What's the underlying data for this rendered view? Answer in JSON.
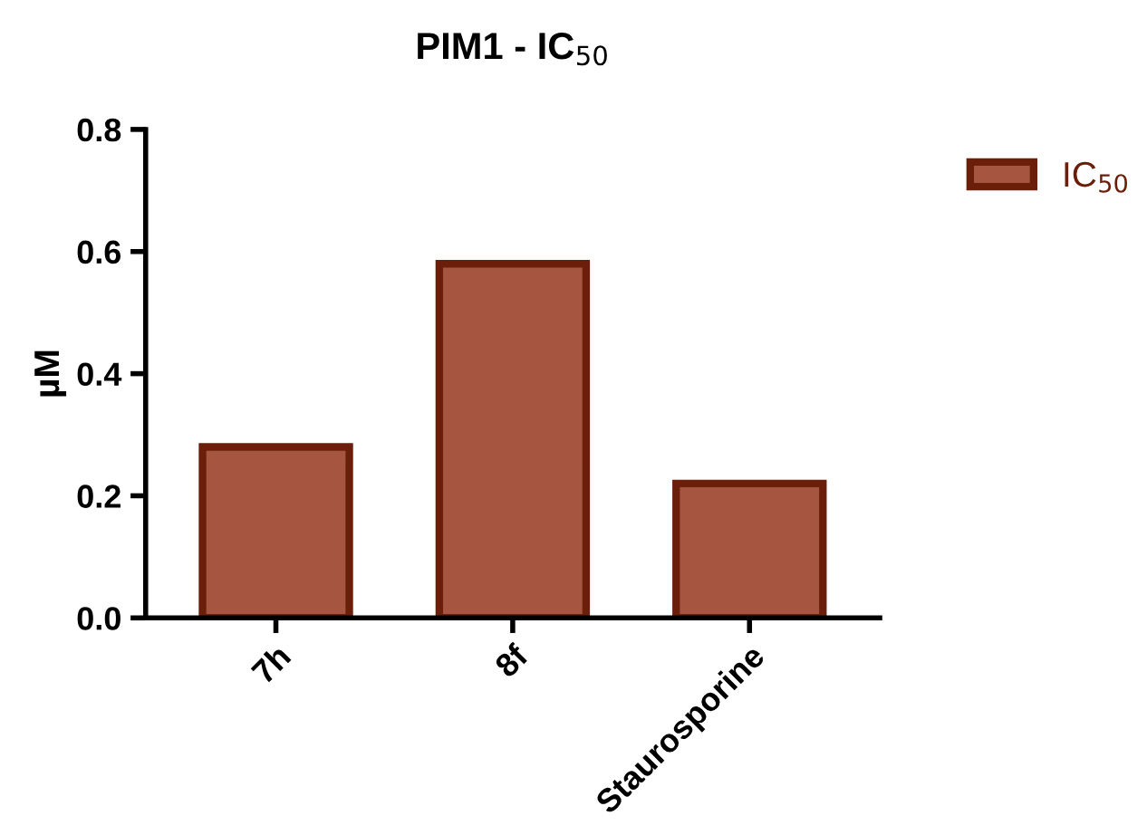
{
  "chart_data": {
    "type": "bar",
    "title": "PIM1 - IC$_{50}$",
    "ylabel": "µM",
    "categories": [
      "7h",
      "8f",
      "Staurosporine"
    ],
    "series": [
      {
        "name": "IC$_{50}$",
        "color": "#a55540",
        "values": [
          0.28,
          0.58,
          0.22
        ]
      }
    ],
    "ylim": [
      0,
      0.8
    ],
    "yticks": [
      {
        "value": 0,
        "label": "0.0"
      },
      {
        "value": 0.2,
        "label": "0.2"
      },
      {
        "value": 0.4,
        "label": "0.4"
      },
      {
        "value": 0.6,
        "label": "0.6"
      },
      {
        "value": 0.8,
        "label": "0.8"
      }
    ],
    "grid": false,
    "legend": "top right"
  }
}
